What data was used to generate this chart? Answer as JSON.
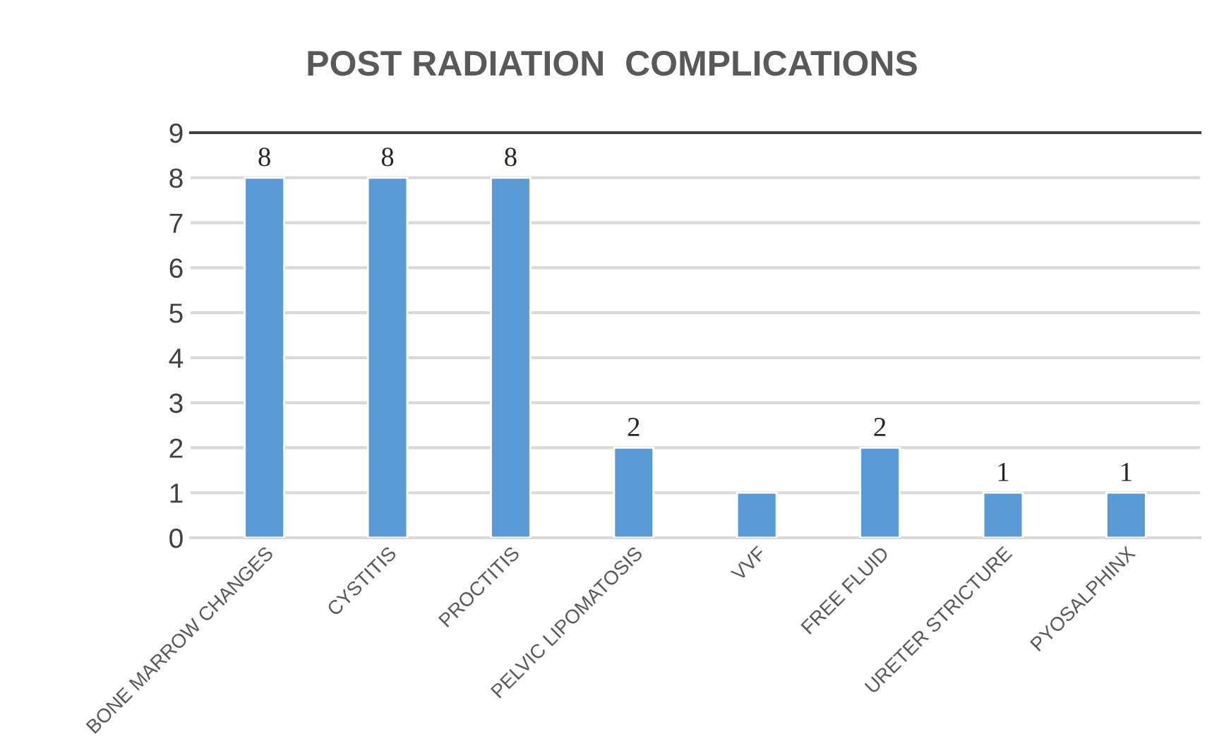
{
  "chart_data": {
    "type": "bar",
    "title": "POST RADIATION  COMPLICATIONS",
    "categories": [
      "BONE MARROW CHANGES",
      "CYSTITIS",
      "PROCTITIS",
      "PELVIC LIPOMATOSIS",
      "VVF",
      "FREE FLUID",
      "URETER STRICTURE",
      "PYOSALPHINX"
    ],
    "values": [
      8,
      8,
      8,
      2,
      1,
      2,
      1,
      1
    ],
    "value_labels": [
      "8",
      "8",
      "8",
      "2",
      null,
      "2",
      "1",
      "1"
    ],
    "color": "#5b9bd5",
    "ylim": [
      0,
      9
    ],
    "yticks": [
      0,
      1,
      2,
      3,
      4,
      5,
      6,
      7,
      8,
      9
    ],
    "grid": "y",
    "legend": false
  }
}
